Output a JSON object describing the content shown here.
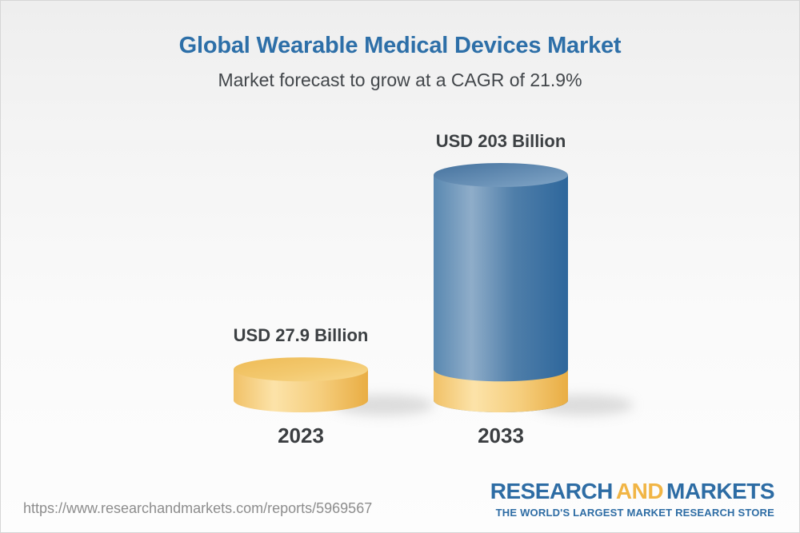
{
  "header": {
    "title": "Global Wearable Medical Devices Market",
    "subtitle": "Market forecast to grow at a CAGR of 21.9%"
  },
  "chart_data": {
    "type": "bar",
    "variant": "3d-cylinder",
    "title": "Global Wearable Medical Devices Market",
    "subtitle": "Market forecast to grow at a CAGR of 21.9%",
    "cagr_percent": 21.9,
    "unit": "USD Billion",
    "categories": [
      "2023",
      "2033"
    ],
    "values": [
      27.9,
      203
    ],
    "value_labels": [
      "USD 27.9 Billion",
      "USD 203 Billion"
    ],
    "series_colors": [
      "#f2c46d",
      "#4a7db0"
    ],
    "base_overlay": {
      "bar_index": 1,
      "value": 27.9,
      "color": "#f2c46d"
    },
    "xlabel": "",
    "ylabel": "",
    "axes_hidden": true,
    "grid": false,
    "legend": false
  },
  "footer": {
    "url": "https://www.researchandmarkets.com/reports/5969567",
    "logo": {
      "part1": "RESEARCH",
      "part2": "AND",
      "part3": "MARKETS",
      "tagline": "THE WORLD'S LARGEST MARKET RESEARCH STORE"
    }
  },
  "colors": {
    "title_blue": "#2d6fa8",
    "text_dark": "#3c4043",
    "url_gray": "#8d8d8d",
    "bar_yellow": "#f2c46d",
    "bar_blue": "#4a7db0",
    "logo_blue": "#2d6ca4",
    "logo_yellow": "#f1b545",
    "background_top": "#eeeeee",
    "background_bottom": "#fdfdfd"
  }
}
